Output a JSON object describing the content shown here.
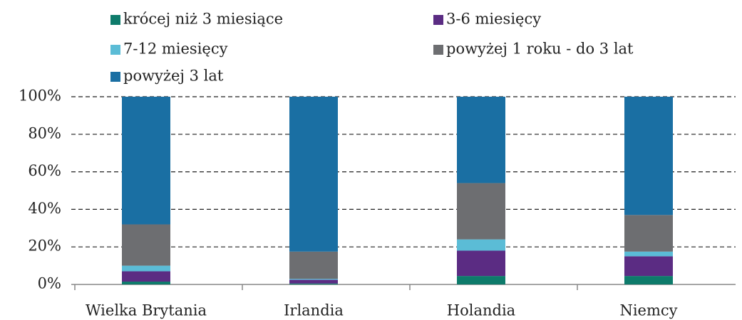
{
  "chart_data": {
    "type": "stacked_bar",
    "categories": [
      "Wielka Brytania",
      "Irlandia",
      "Holandia",
      "Niemcy"
    ],
    "series": [
      {
        "name": "krócej niż 3 miesiące",
        "color": "#0e7b6b",
        "values": [
          1.5,
          0.5,
          4.5,
          4.5
        ]
      },
      {
        "name": "3-6 miesięcy",
        "color": "#5b2c83",
        "values": [
          5.5,
          2,
          13.5,
          10.5
        ]
      },
      {
        "name": "7-12 miesięcy",
        "color": "#5bbcd6",
        "values": [
          3,
          0.5,
          6,
          2.5
        ]
      },
      {
        "name": "powyżej 1 roku - do 3 lat",
        "color": "#6d6e71",
        "values": [
          22,
          14.5,
          30,
          19.5
        ]
      },
      {
        "name": "powyżej 3 lat",
        "color": "#1a6fa3",
        "values": [
          68,
          82.5,
          46,
          63
        ]
      }
    ],
    "ylim": [
      0,
      100
    ],
    "yticks": [
      {
        "value": 0,
        "label": "0%"
      },
      {
        "value": 20,
        "label": "20%"
      },
      {
        "value": 40,
        "label": "40%"
      },
      {
        "value": 60,
        "label": "60%"
      },
      {
        "value": 80,
        "label": "80%"
      },
      {
        "value": 100,
        "label": "100%"
      }
    ],
    "grid": true
  }
}
